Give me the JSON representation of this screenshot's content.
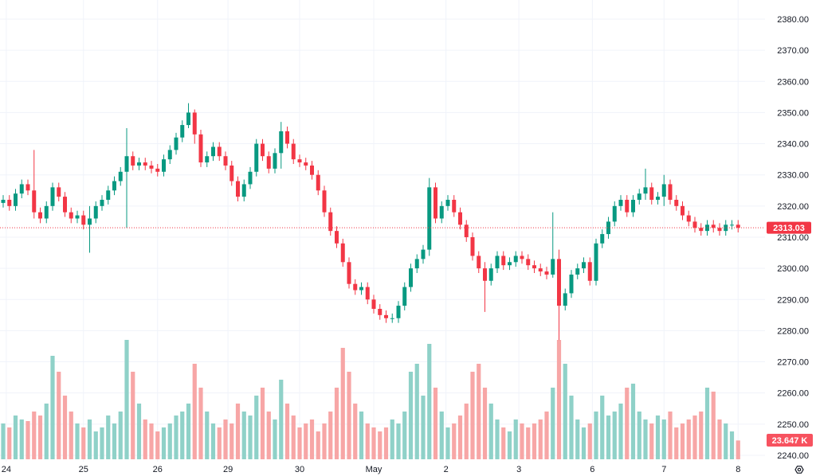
{
  "chart_data": {
    "type": "candlestick",
    "title": "",
    "ylim": [
      2240,
      2380
    ],
    "y_ticks": [
      "2380.00",
      "2370.00",
      "2360.00",
      "2350.00",
      "2340.00",
      "2330.00",
      "2320.00",
      "2310.00",
      "2300.00",
      "2290.00",
      "2280.00",
      "2270.00",
      "2260.00",
      "2250.00",
      "2240.00"
    ],
    "y_tick_values": [
      2380,
      2370,
      2360,
      2350,
      2340,
      2330,
      2320,
      2310,
      2300,
      2290,
      2280,
      2270,
      2260,
      2250,
      2240
    ],
    "x_ticks": [
      {
        "label": "24",
        "at_index": 0.5
      },
      {
        "label": "25",
        "at_index": 13
      },
      {
        "label": "26",
        "at_index": 25
      },
      {
        "label": "29",
        "at_index": 36.4
      },
      {
        "label": "30",
        "at_index": 48
      },
      {
        "label": "May",
        "at_index": 60
      },
      {
        "label": "2",
        "at_index": 71.7
      },
      {
        "label": "3",
        "at_index": 83.5
      },
      {
        "label": "6",
        "at_index": 95.4
      },
      {
        "label": "7",
        "at_index": 107
      },
      {
        "label": "8",
        "at_index": 119
      }
    ],
    "first_open": 2321,
    "close": [
      2322,
      2320,
      2324,
      2327,
      2325,
      2318,
      2316,
      2320,
      2326,
      2323,
      2318,
      2316,
      2317,
      2314,
      2316,
      2320,
      2322,
      2325,
      2328,
      2331,
      2336,
      2333,
      2334,
      2333,
      2332,
      2331,
      2335,
      2338,
      2342,
      2346,
      2350,
      2343,
      2334,
      2336,
      2339,
      2336,
      2333,
      2328,
      2323,
      2327,
      2331,
      2340,
      2336,
      2332,
      2337,
      2344,
      2340,
      2335,
      2334,
      2333,
      2330,
      2325,
      2318,
      2312,
      2308,
      2302,
      2295,
      2293,
      2294,
      2290,
      2287,
      2285,
      2284,
      2284,
      2288,
      2294,
      2300,
      2303,
      2306,
      2326,
      2316,
      2320,
      2322,
      2318,
      2314,
      2310,
      2304,
      2300,
      2296,
      2300,
      2304,
      2301,
      2302,
      2304,
      2303,
      2301,
      2300,
      2299,
      2298,
      2303,
      2288,
      2292,
      2298,
      2300,
      2302,
      2296,
      2308,
      2311,
      2315,
      2320,
      2322,
      2318,
      2322,
      2324,
      2326,
      2322,
      2323,
      2327,
      2322,
      2320,
      2317,
      2315,
      2313,
      2312,
      2314,
      2313,
      2312,
      2314,
      2314,
      2313.03
    ],
    "wick_overrides": {
      "5": [
        2338,
        2316
      ],
      "14": [
        2320,
        2305
      ],
      "20": [
        2345,
        2313
      ],
      "30": [
        2353,
        2345
      ],
      "31": [
        2351,
        2340
      ],
      "45": [
        2347,
        2332
      ],
      "69": [
        2329,
        2304
      ],
      "78": [
        2302,
        2286
      ],
      "89": [
        2318,
        2297
      ],
      "90": [
        2306,
        2277
      ],
      "104": [
        2332,
        2322
      ],
      "107": [
        2330,
        2320
      ]
    },
    "volume_unit": "K",
    "volume": [
      45,
      40,
      55,
      50,
      48,
      60,
      55,
      70,
      130,
      110,
      80,
      60,
      45,
      40,
      50,
      35,
      40,
      55,
      45,
      60,
      150,
      110,
      70,
      50,
      45,
      35,
      40,
      45,
      55,
      60,
      70,
      120,
      90,
      60,
      45,
      40,
      50,
      45,
      70,
      60,
      55,
      80,
      90,
      60,
      50,
      100,
      70,
      55,
      40,
      45,
      50,
      35,
      45,
      60,
      90,
      140,
      110,
      70,
      60,
      45,
      40,
      35,
      40,
      50,
      45,
      60,
      110,
      120,
      80,
      145,
      90,
      60,
      40,
      45,
      55,
      70,
      110,
      120,
      90,
      70,
      50,
      40,
      35,
      50,
      45,
      40,
      45,
      50,
      60,
      90,
      150,
      120,
      80,
      50,
      40,
      45,
      60,
      80,
      55,
      60,
      70,
      90,
      95,
      60,
      50,
      45,
      55,
      50,
      60,
      40,
      45,
      50,
      55,
      60,
      90,
      85,
      50,
      45,
      35,
      23.647
    ],
    "last_price_label": "2313.03",
    "last_volume_label": "23.647 K",
    "colors": {
      "up": "#089981",
      "down": "#f23645",
      "vol_up": "#8fd1c8",
      "vol_down": "#f7a6a6",
      "grid": "#f0f3fa",
      "last": "#f23645",
      "vol_label": "#f7525f"
    }
  },
  "settings_icon": "gear-icon"
}
